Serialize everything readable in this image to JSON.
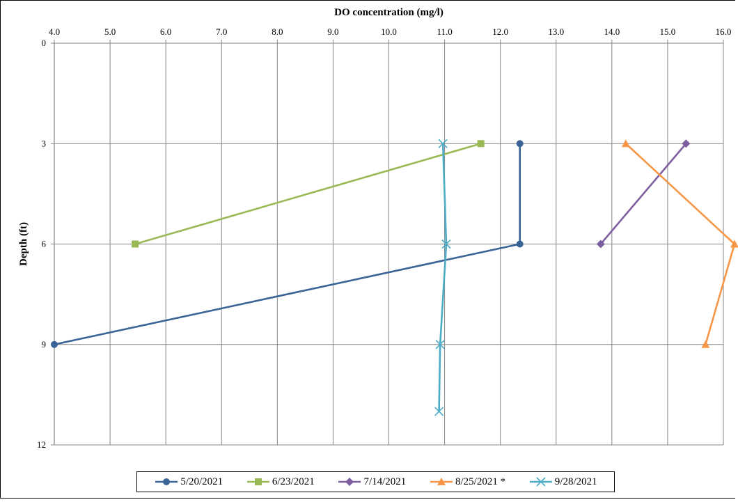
{
  "chart_data": {
    "type": "line",
    "title": "DO concentration (mg/l)",
    "xlabel": "DO concentration (mg/l)",
    "ylabel": "Depth (ft)",
    "xlim": [
      4.0,
      16.0
    ],
    "ylim": [
      0,
      12
    ],
    "x_axis_position": "top",
    "y_axis_inverted": true,
    "grid": true,
    "legend_position": "bottom",
    "x_ticks": [
      "4.0",
      "5.0",
      "6.0",
      "7.0",
      "8.0",
      "9.0",
      "10.0",
      "11.0",
      "12.0",
      "13.0",
      "14.0",
      "15.0",
      "16.0"
    ],
    "y_ticks": [
      "0",
      "3",
      "6",
      "9",
      "12"
    ],
    "series": [
      {
        "name": "5/20/2021",
        "color": "#3b6496",
        "marker": "circle",
        "points": [
          {
            "x": 12.35,
            "y": 3
          },
          {
            "x": 12.35,
            "y": 6
          },
          {
            "x": 4.0,
            "y": 9
          }
        ]
      },
      {
        "name": "6/23/2021",
        "color": "#98b954",
        "marker": "square",
        "points": [
          {
            "x": 11.65,
            "y": 3
          },
          {
            "x": 5.45,
            "y": 6
          }
        ]
      },
      {
        "name": "7/14/2021",
        "color": "#7d5fa0",
        "marker": "diamond",
        "points": [
          {
            "x": 15.33,
            "y": 3
          },
          {
            "x": 13.8,
            "y": 6
          }
        ]
      },
      {
        "name": "8/25/2021 *",
        "color": "#f79646",
        "marker": "triangle",
        "points": [
          {
            "x": 14.25,
            "y": 3
          },
          {
            "x": 16.2,
            "y": 6
          },
          {
            "x": 15.68,
            "y": 9
          }
        ]
      },
      {
        "name": "9/28/2021",
        "color": "#4bacc6",
        "marker": "x",
        "points": [
          {
            "x": 10.97,
            "y": 3
          },
          {
            "x": 11.03,
            "y": 6
          },
          {
            "x": 10.92,
            "y": 9
          },
          {
            "x": 10.9,
            "y": 11
          }
        ]
      }
    ]
  }
}
